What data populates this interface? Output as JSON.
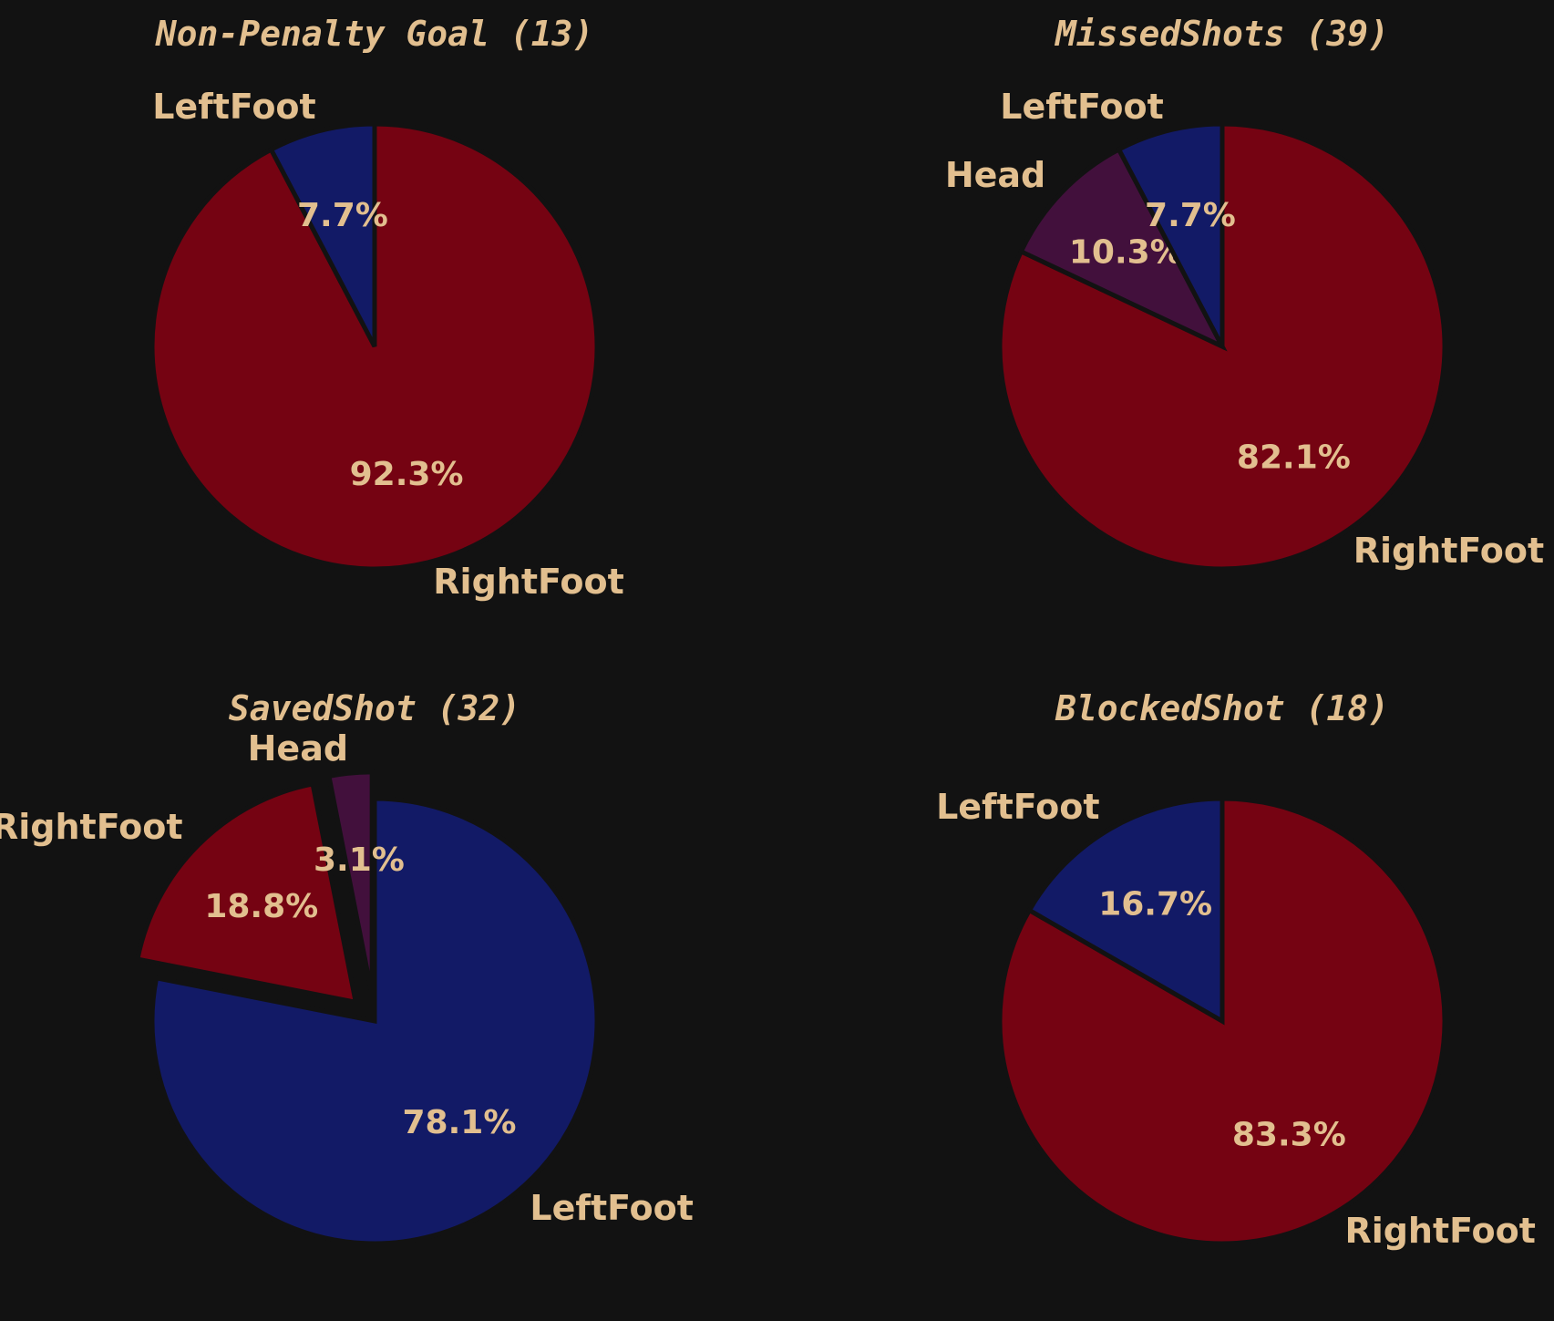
{
  "colors": {
    "background": "#121212",
    "text": "#e2bf8f",
    "edge": "#121212"
  },
  "chart_data": [
    {
      "type": "pie",
      "title": "Non-Penalty Goal (13)",
      "start_angle_deg": 90,
      "direction": "clockwise",
      "slices": [
        {
          "label": "RightFoot",
          "value": 92.3,
          "pct_label": "92.3%",
          "color": "#750312",
          "exploded": false
        },
        {
          "label": "LeftFoot",
          "value": 7.7,
          "pct_label": "7.7%",
          "color": "#121a66",
          "exploded": false
        }
      ]
    },
    {
      "type": "pie",
      "title": "MissedShots (39)",
      "start_angle_deg": 90,
      "direction": "clockwise",
      "slices": [
        {
          "label": "RightFoot",
          "value": 82.1,
          "pct_label": "82.1%",
          "color": "#750312",
          "exploded": false
        },
        {
          "label": "Head",
          "value": 10.3,
          "pct_label": "10.3%",
          "color": "#42103c",
          "exploded": false
        },
        {
          "label": "LeftFoot",
          "value": 7.7,
          "pct_label": "7.7%",
          "color": "#121a66",
          "exploded": false
        }
      ]
    },
    {
      "type": "pie",
      "title": "SavedShot (32)",
      "start_angle_deg": 90,
      "direction": "clockwise",
      "slices": [
        {
          "label": "LeftFoot",
          "value": 78.1,
          "pct_label": "78.1%",
          "color": "#121a66",
          "exploded": false
        },
        {
          "label": "RightFoot",
          "value": 18.8,
          "pct_label": "18.8%",
          "color": "#750312",
          "exploded": true
        },
        {
          "label": "Head",
          "value": 3.1,
          "pct_label": "3.1%",
          "color": "#42103c",
          "exploded": true
        }
      ]
    },
    {
      "type": "pie",
      "title": "BlockedShot (18)",
      "start_angle_deg": 90,
      "direction": "clockwise",
      "slices": [
        {
          "label": "RightFoot",
          "value": 83.3,
          "pct_label": "83.3%",
          "color": "#750312",
          "exploded": false
        },
        {
          "label": "LeftFoot",
          "value": 16.7,
          "pct_label": "16.7%",
          "color": "#121a66",
          "exploded": false
        }
      ]
    }
  ]
}
